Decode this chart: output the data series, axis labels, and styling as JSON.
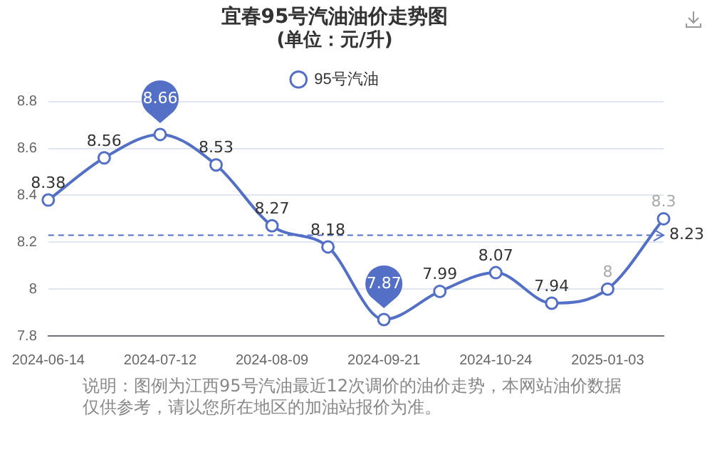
{
  "chart_data": {
    "type": "line",
    "title": "宜春95号汽油油价走势图",
    "subtitle": "(单位：元/升)",
    "categories": [
      "2024-06-14",
      null,
      "2024-07-12",
      null,
      "2024-08-09",
      null,
      "2024-09-21",
      null,
      "2024-10-24",
      null,
      "2025-01-03",
      null
    ],
    "series": [
      {
        "name": "95号汽油",
        "color": "#5470c6",
        "values": [
          8.38,
          8.56,
          8.66,
          8.53,
          8.27,
          8.18,
          7.87,
          7.99,
          8.07,
          7.94,
          8,
          8.3
        ]
      }
    ],
    "ylim": [
      7.8,
      8.8
    ],
    "yticks": [
      7.8,
      8,
      8.2,
      8.4,
      8.6,
      8.8
    ],
    "grid": "y",
    "legend": "top",
    "marker": "circle",
    "data_labels": true,
    "ref_lines": [
      {
        "axis": "y",
        "value": 8.23,
        "label": "8.23",
        "line_style": "dashed"
      }
    ],
    "annotations": [
      "说明：图例为江西95号汽油最近12次调价的油价走势，本网站油价数据仅供参考，请以您所在地区的加油站报价为准。"
    ]
  }
}
